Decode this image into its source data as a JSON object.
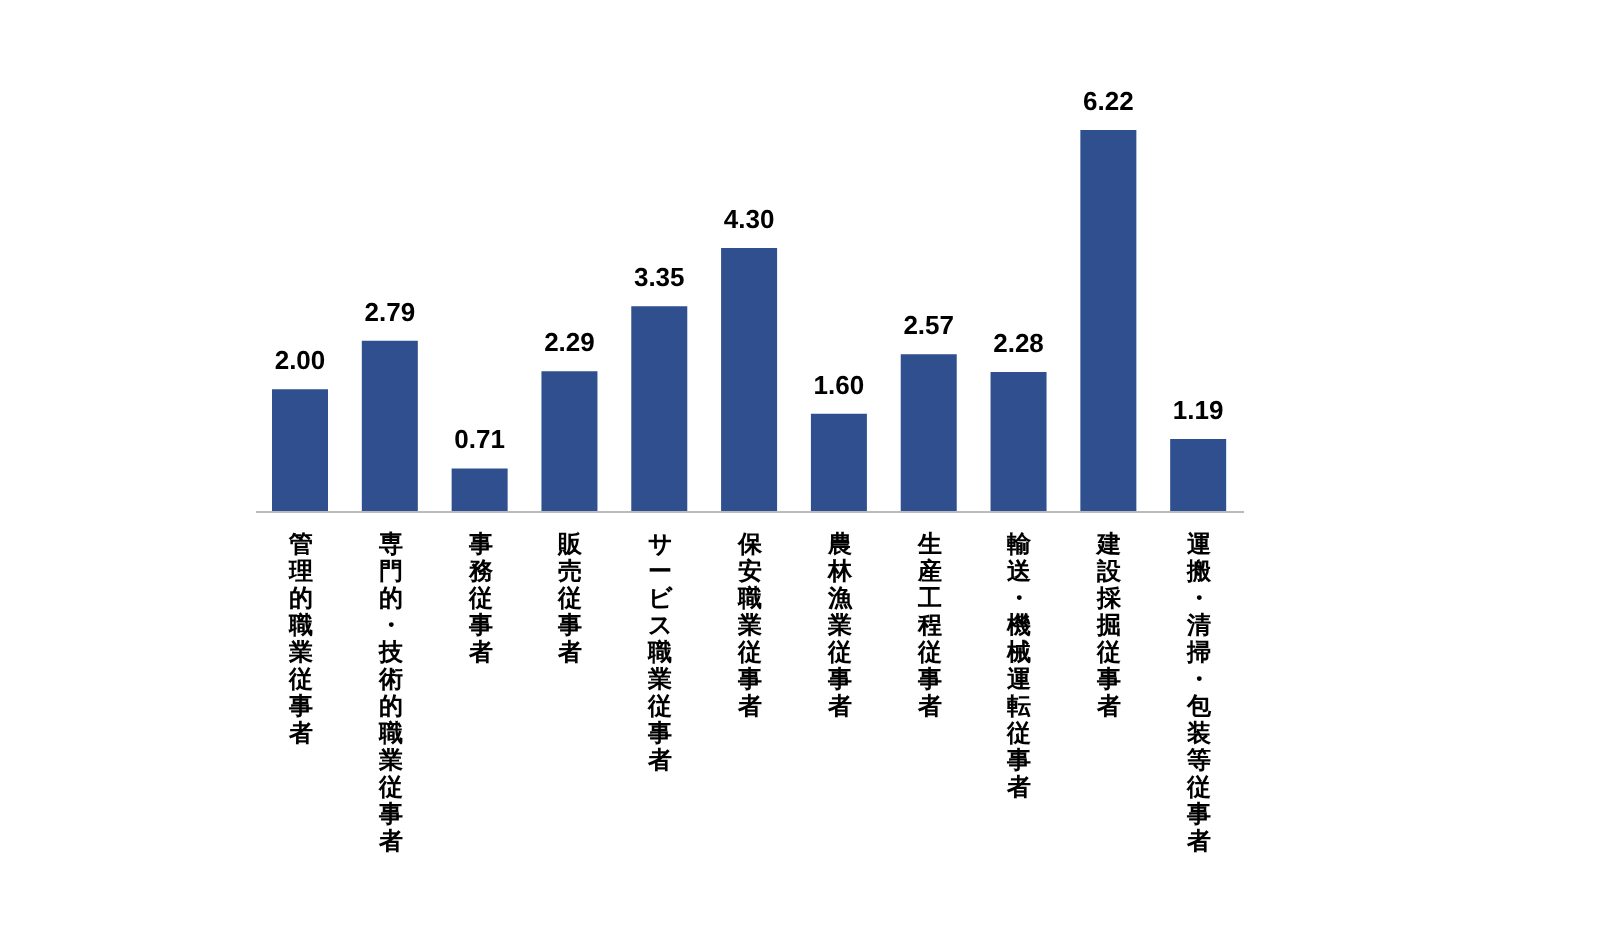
{
  "chart_data": {
    "type": "bar",
    "categories": [
      "管理的職業従事者",
      "専門的・技術的職業従事者",
      "事務従事者",
      "販売従事者",
      "サービス職業従事者",
      "保安職業従事者",
      "農林漁業従事者",
      "生産工程従事者",
      "輸送・機械運転従事者",
      "建設採掘従事者",
      "運搬・清掃・包装等従事者"
    ],
    "values": [
      2.0,
      2.79,
      0.71,
      2.29,
      3.35,
      4.3,
      1.6,
      2.57,
      2.28,
      6.22,
      1.19
    ],
    "value_labels": [
      "2.00",
      "2.79",
      "0.71",
      "2.29",
      "3.35",
      "4.30",
      "1.60",
      "2.57",
      "2.28",
      "6.22",
      "1.19"
    ],
    "color": "#2f4f8f"
  }
}
